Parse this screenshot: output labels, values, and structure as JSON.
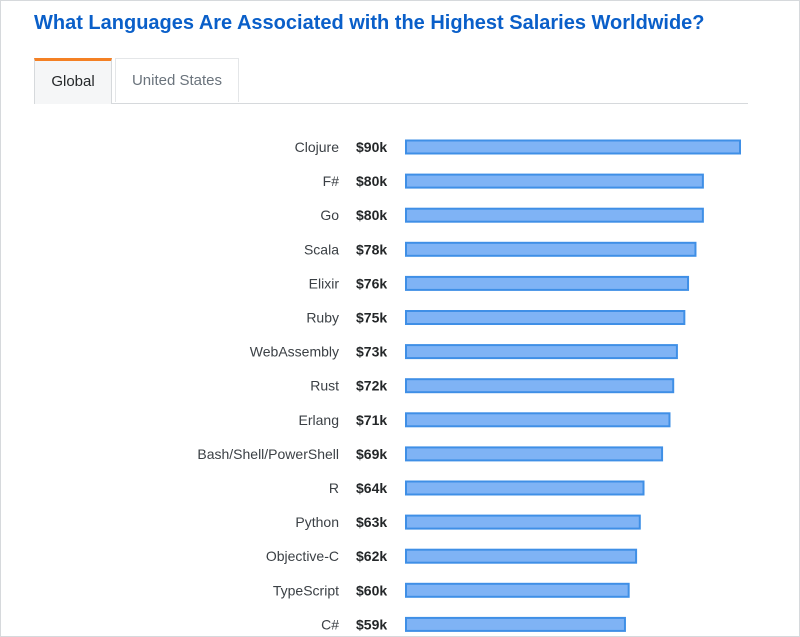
{
  "header": {
    "title": "What Languages Are Associated with the Highest Salaries Worldwide?"
  },
  "tabs": [
    {
      "label": "Global",
      "active": true
    },
    {
      "label": "United States",
      "active": false
    }
  ],
  "colors": {
    "title": "#0a5fc9",
    "bar_fill": "#7fb3f5",
    "bar_stroke": "#3f8fe6",
    "active_tab_accent": "#f48024"
  },
  "chart_data": {
    "type": "bar",
    "orientation": "horizontal",
    "title": "What Languages Are Associated with the Highest Salaries Worldwide?",
    "xlabel": "",
    "ylabel": "",
    "xlim": [
      0,
      90
    ],
    "grid": false,
    "legend": "none",
    "categories": [
      "Clojure",
      "F#",
      "Go",
      "Scala",
      "Elixir",
      "Ruby",
      "WebAssembly",
      "Rust",
      "Erlang",
      "Bash/Shell/PowerShell",
      "R",
      "Python",
      "Objective-C",
      "TypeScript",
      "C#"
    ],
    "values": [
      90,
      80,
      80,
      78,
      76,
      75,
      73,
      72,
      71,
      69,
      64,
      63,
      62,
      60,
      59
    ],
    "value_labels": [
      "$90k",
      "$80k",
      "$80k",
      "$78k",
      "$76k",
      "$75k",
      "$73k",
      "$72k",
      "$71k",
      "$69k",
      "$64k",
      "$63k",
      "$62k",
      "$60k",
      "$59k"
    ]
  }
}
